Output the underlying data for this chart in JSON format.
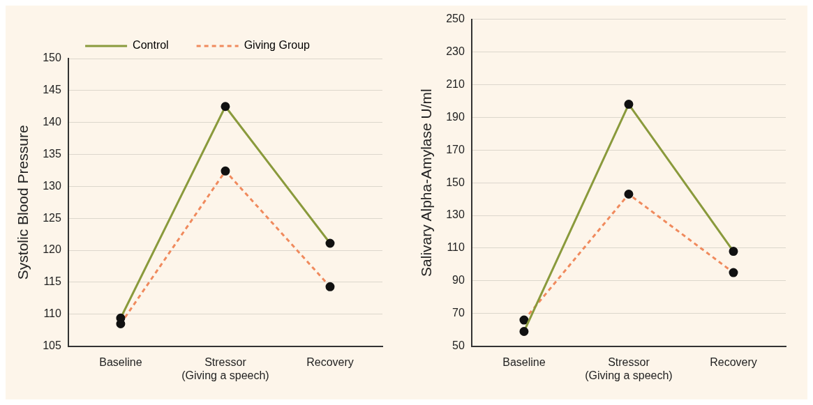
{
  "chart_data": [
    {
      "type": "line",
      "categories": [
        "Baseline",
        "Stressor\n(Giving a speech)",
        "Recovery"
      ],
      "ylabel": "Systolic Blood Pressure",
      "ylim": [
        105,
        150
      ],
      "yticks": [
        105,
        110,
        115,
        120,
        125,
        130,
        135,
        140,
        145,
        150
      ],
      "grid": "y",
      "legend": "top",
      "marker": "circle",
      "series": [
        {
          "name": "Control",
          "color": "#8a9a3c",
          "line_style": "solid",
          "values": [
            109.4,
            142.5,
            121.1
          ]
        },
        {
          "name": "Giving Group",
          "color": "#f08a5d",
          "line_style": "dashed",
          "values": [
            108.5,
            132.4,
            114.3
          ]
        }
      ]
    },
    {
      "type": "line",
      "categories": [
        "Baseline",
        "Stressor\n(Giving a speech)",
        "Recovery"
      ],
      "ylabel": "Salivary Alpha-Amylase U/ml",
      "ylim": [
        50,
        250
      ],
      "yticks": [
        50,
        70,
        90,
        110,
        130,
        150,
        170,
        190,
        210,
        230,
        250
      ],
      "grid": "y",
      "marker": "circle",
      "series": [
        {
          "color": "#8a9a3c",
          "line_style": "solid",
          "values": [
            59,
            198,
            108
          ]
        },
        {
          "color": "#f08a5d",
          "line_style": "dashed",
          "values": [
            66,
            143,
            95
          ]
        }
      ]
    }
  ]
}
